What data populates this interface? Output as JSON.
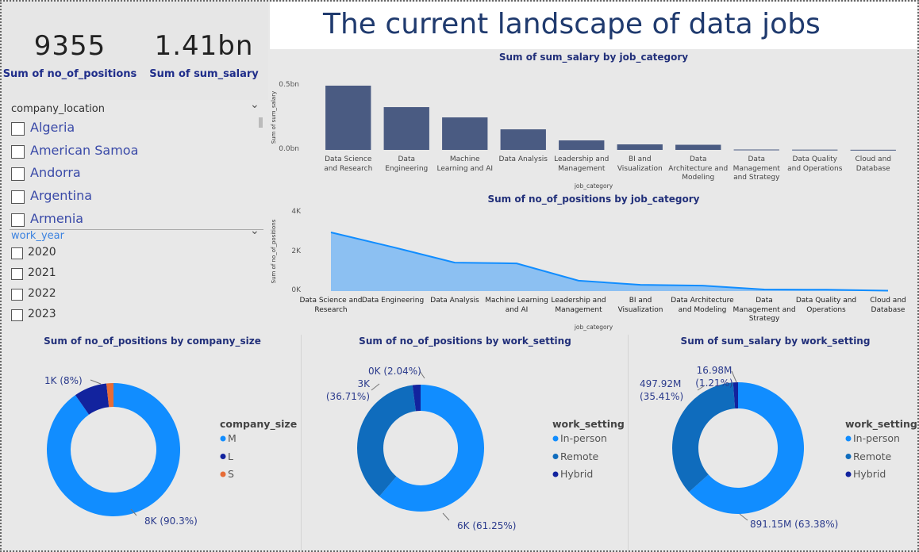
{
  "header": {
    "title": "The current landscape of data jobs"
  },
  "kpis": [
    {
      "value": 9355,
      "label": "Sum of no_of_positions"
    },
    {
      "value": "1.41bn",
      "label": "Sum of sum_salary"
    }
  ],
  "slicers": [
    {
      "title": "company_location",
      "options": [
        "Algeria",
        "American Samoa",
        "Andorra",
        "Argentina",
        "Armenia"
      ]
    },
    {
      "title": "work_year",
      "options": [
        "2020",
        "2021",
        "2022",
        "2023"
      ]
    }
  ],
  "chart_data": [
    {
      "type": "bar",
      "title": "Sum of sum_salary by job_category",
      "x_label": "job_category",
      "y_label": "Sum of sum_salary",
      "categories": [
        "Data Science and Research",
        "Data Engineering",
        "Machine Learning and AI",
        "Data Analysis",
        "Leadership and Management",
        "BI and Visualization",
        "Data Architecture and Modeling",
        "Data Management and Strategy",
        "Data Quality and Operations",
        "Cloud and Database"
      ],
      "values": [
        0.5,
        0.333,
        0.253,
        0.16,
        0.074,
        0.043,
        0.04,
        0.003,
        0.002,
        0.001
      ],
      "color": "#4a5b82",
      "ylim": [
        0,
        0.5
      ],
      "yticks": [
        {
          "value": 0,
          "label": "0.0bn"
        },
        {
          "value": 0.5,
          "label": "0.5bn"
        }
      ],
      "grid": false
    },
    {
      "type": "area",
      "title": "Sum of no_of_positions by job_category",
      "x_label": "job_category",
      "y_label": "Sum of no_of_positions",
      "categories": [
        "Data Science and Research",
        "Data Engineering",
        "Data Analysis",
        "Machine Learning and AI",
        "Leadership and Management",
        "BI and Visualization",
        "Data Architecture and Modeling",
        "Data Management and Strategy",
        "Data Quality and Operations",
        "Cloud and Database"
      ],
      "values": [
        2990,
        2240,
        1450,
        1410,
        530,
        320,
        280,
        80,
        70,
        20
      ],
      "color": "#118dff",
      "ylim": [
        0,
        4000
      ],
      "yticks": [
        {
          "value": 0,
          "label": "0K"
        },
        {
          "value": 2000,
          "label": "2K"
        },
        {
          "value": 4000,
          "label": "4K"
        }
      ],
      "grid": false
    },
    {
      "type": "donut",
      "title": "Sum of no_of_positions by company_size",
      "legend_title": "company_size",
      "categories": [
        "M",
        "L",
        "S"
      ],
      "values": [
        8448,
        748,
        159
      ],
      "value_labels": [
        "8K (90.3%)",
        "1K (8%)",
        null
      ],
      "colors": [
        "#118dff",
        "#12239e",
        "#e66c37"
      ]
    },
    {
      "type": "donut",
      "title": "Sum of no_of_positions by work_setting",
      "legend_title": "work_setting",
      "categories": [
        "In-person",
        "Remote",
        "Hybrid"
      ],
      "values": [
        5730,
        3434,
        191
      ],
      "value_labels": [
        "6K (61.25%)",
        "3K (36.71%)",
        "0K (2.04%)"
      ],
      "colors": [
        "#118dff",
        "#0f6cbd",
        "#12239e"
      ]
    },
    {
      "type": "donut",
      "title": "Sum of sum_salary by work_setting",
      "legend_title": "work_setting",
      "categories": [
        "In-person",
        "Remote",
        "Hybrid"
      ],
      "values": [
        891.15,
        497.92,
        16.98
      ],
      "value_labels": [
        "891.15M (63.38%)",
        "497.92M (35.41%)",
        "16.98M (1.21%)"
      ],
      "colors": [
        "#118dff",
        "#0f6cbd",
        "#12239e"
      ]
    }
  ]
}
